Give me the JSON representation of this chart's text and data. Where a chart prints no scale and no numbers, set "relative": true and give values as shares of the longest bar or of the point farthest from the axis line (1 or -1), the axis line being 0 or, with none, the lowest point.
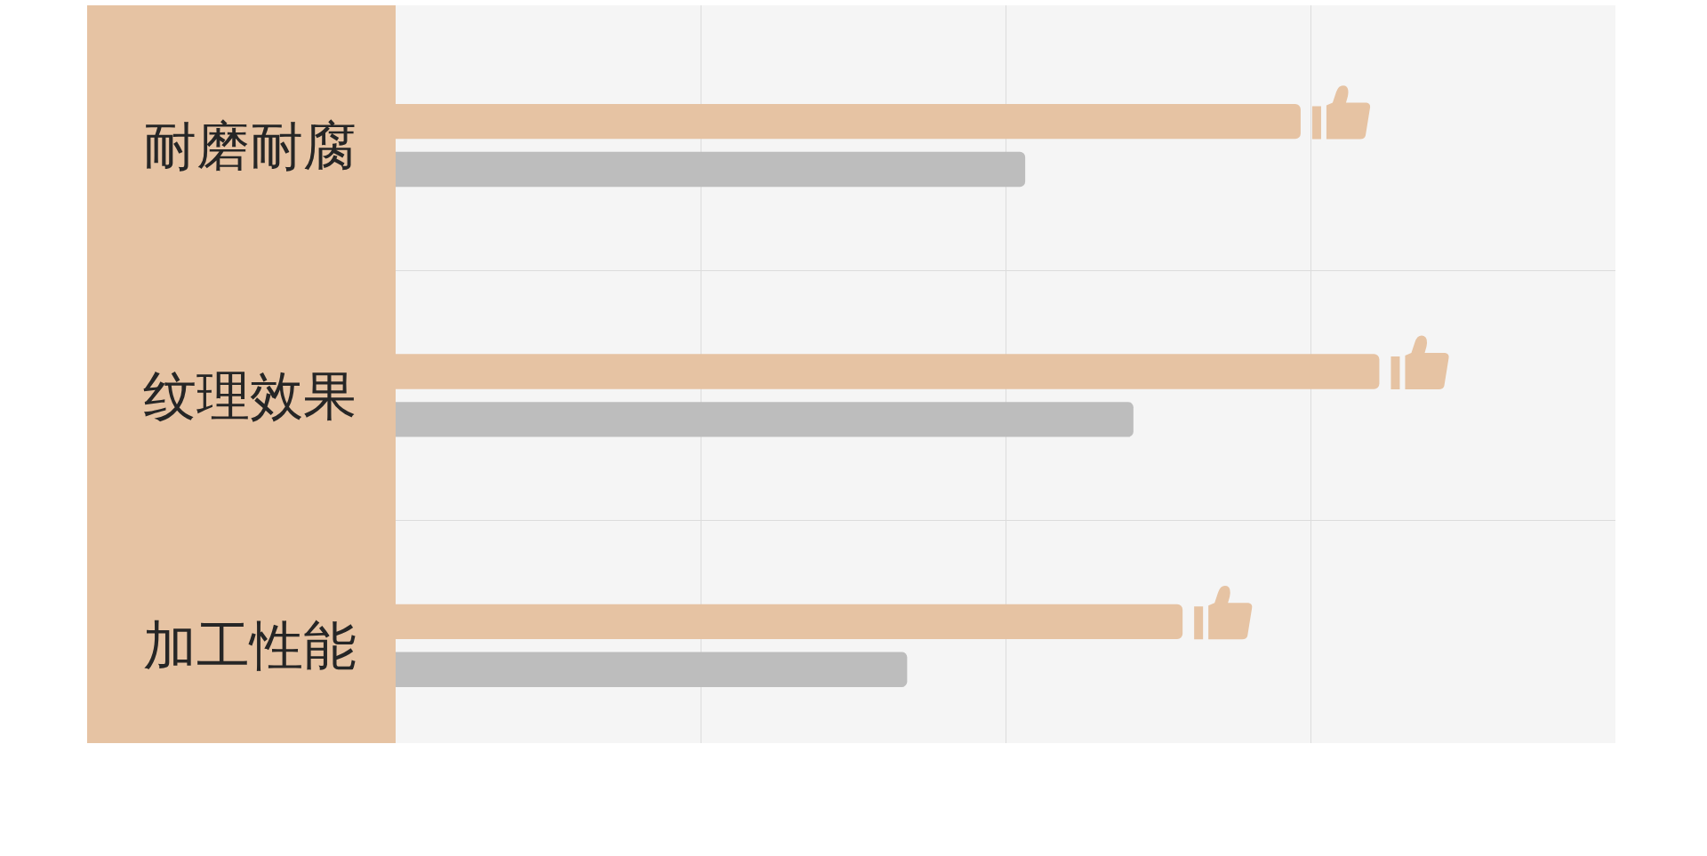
{
  "chart_data": {
    "type": "bar",
    "orientation": "horizontal",
    "relative": true,
    "categories": [
      "耐磨耐腐",
      "纹理效果",
      "加工性能"
    ],
    "series": [
      {
        "color": "#e6c3a3",
        "values": [
          0.92,
          1,
          0.8
        ]
      },
      {
        "color": "#bdbdbd",
        "values": [
          0.64,
          0.75,
          0.52
        ]
      }
    ],
    "grid": true
  }
}
